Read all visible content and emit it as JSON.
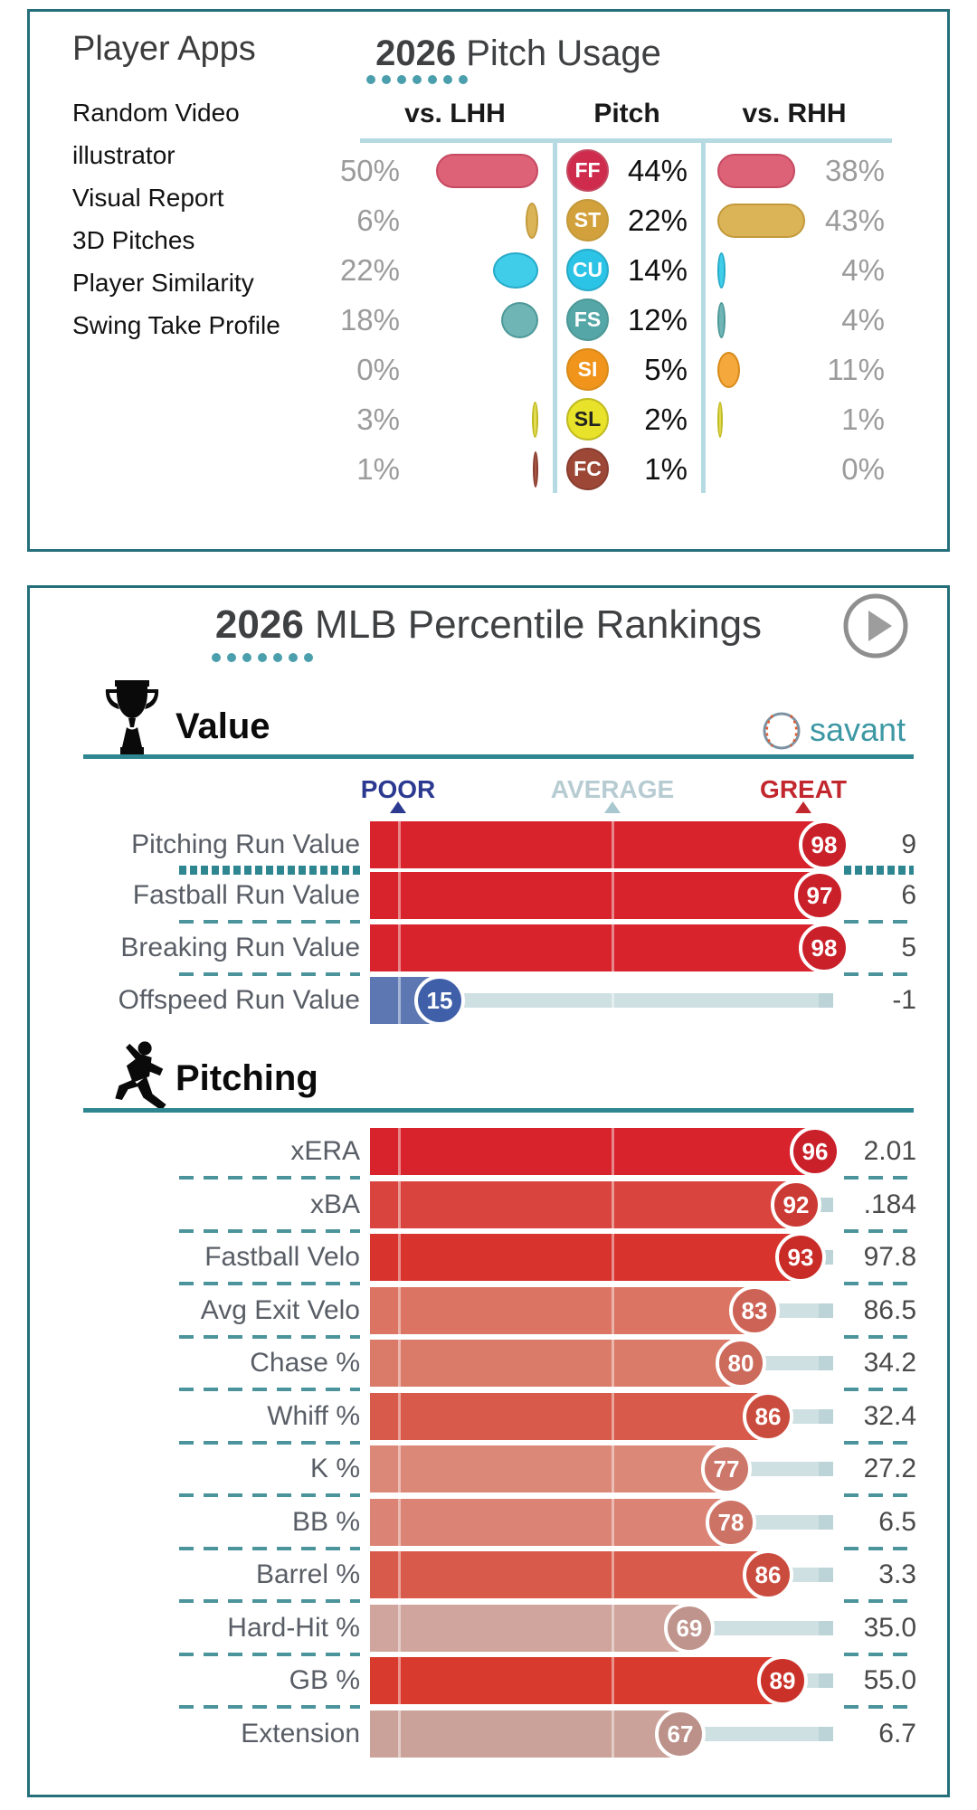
{
  "theme": {
    "card_border": "#256f7b",
    "accent_teal": "#2e8691",
    "dot_color": "#4b9fad",
    "table_line": "#b5dae2",
    "track_color": "#cfe0e2"
  },
  "pitch_usage_card": {
    "apps_title": "Player Apps",
    "app_links": [
      "Random Video",
      "illustrator",
      "Visual Report",
      "3D Pitches",
      "Player Similarity",
      "Swing Take Profile"
    ],
    "title_year": "2026",
    "title_rest": " Pitch Usage",
    "col_lhh": "vs. LHH",
    "col_pitch": "Pitch",
    "col_rhh": "vs. RHH",
    "rows": [
      {
        "code": "FF",
        "lhh_label": "50%",
        "lhh_pct": 50,
        "mid_label": "44%",
        "mid_pct": 44,
        "rhh_label": "38%",
        "rhh_pct": 38,
        "badge_color": "#ce2b4d",
        "badge_text_color": "#ffffff",
        "pill_color": "#dd6177",
        "pill_border": "#c54a62"
      },
      {
        "code": "ST",
        "lhh_label": "6%",
        "lhh_pct": 6,
        "mid_label": "22%",
        "mid_pct": 22,
        "rhh_label": "43%",
        "rhh_pct": 43,
        "badge_color": "#d2a13b",
        "badge_text_color": "#ffffff",
        "pill_color": "#dcb458",
        "pill_border": "#c39a3b"
      },
      {
        "code": "CU",
        "lhh_label": "22%",
        "lhh_pct": 22,
        "mid_label": "14%",
        "mid_pct": 14,
        "rhh_label": "4%",
        "rhh_pct": 4,
        "badge_color": "#2cc4e6",
        "badge_text_color": "#ffffff",
        "pill_color": "#3fcdea",
        "pill_border": "#27aac9"
      },
      {
        "code": "FS",
        "lhh_label": "18%",
        "lhh_pct": 18,
        "mid_label": "12%",
        "mid_pct": 12,
        "rhh_label": "4%",
        "rhh_pct": 4,
        "badge_color": "#55a6a6",
        "badge_text_color": "#ffffff",
        "pill_color": "#6fb5b5",
        "pill_border": "#4d9898"
      },
      {
        "code": "SI",
        "lhh_label": "0%",
        "lhh_pct": 0,
        "mid_label": "5%",
        "mid_pct": 5,
        "rhh_label": "11%",
        "rhh_pct": 11,
        "badge_color": "#f0941c",
        "badge_text_color": "#ffffff",
        "pill_color": "#f5a93c",
        "pill_border": "#d88a1a"
      },
      {
        "code": "SL",
        "lhh_label": "3%",
        "lhh_pct": 3,
        "mid_label": "2%",
        "mid_pct": 2,
        "rhh_label": "1%",
        "rhh_pct": 1,
        "badge_color": "#e8e22a",
        "badge_text_color": "#222222",
        "pill_color": "#e3dd55",
        "pill_border": "#c0ba22"
      },
      {
        "code": "FC",
        "lhh_label": "1%",
        "lhh_pct": 1,
        "mid_label": "1%",
        "mid_pct": 1,
        "rhh_label": "0%",
        "rhh_pct": 0,
        "badge_color": "#9d4837",
        "badge_text_color": "#ffffff",
        "pill_color": "#a65847",
        "pill_border": "#8a3d2f"
      }
    ]
  },
  "rankings_card": {
    "title_year": "2026",
    "title_rest": " MLB Percentile Rankings",
    "brand": "savant",
    "brand_color": "#3d98a4",
    "scale": {
      "poor_label": "POOR",
      "poor_color": "#2b3990",
      "avg_label": "AVERAGE",
      "avg_color": "#b7ccd2",
      "great_label": "GREAT",
      "great_color": "#c1272d"
    },
    "sections": [
      {
        "name": "Value",
        "icon": "trophy-icon",
        "rows": [
          {
            "label": "Pitching Run Value",
            "percentile": 98,
            "value": "9",
            "bar_color": "#d8232c",
            "badge_color": "#c9202a",
            "sep_after": "thick"
          },
          {
            "label": "Fastball Run Value",
            "percentile": 97,
            "value": "6",
            "bar_color": "#d8232c",
            "badge_color": "#c9202a",
            "sep_after": "dash"
          },
          {
            "label": "Breaking Run Value",
            "percentile": 98,
            "value": "5",
            "bar_color": "#d8232c",
            "badge_color": "#c9202a",
            "sep_after": "dash"
          },
          {
            "label": "Offspeed Run Value",
            "percentile": 15,
            "value": "-1",
            "bar_color": "#5d77b2",
            "badge_color": "#3f5fa8",
            "sep_after": null
          }
        ]
      },
      {
        "name": "Pitching",
        "icon": "pitcher-icon",
        "rows": [
          {
            "label": "xERA",
            "percentile": 96,
            "value": "2.01",
            "bar_color": "#d8232c",
            "badge_color": "#c9202a",
            "sep_after": "dash"
          },
          {
            "label": "xBA",
            "percentile": 92,
            "value": ".184",
            "bar_color": "#d9453e",
            "badge_color": "#cb3a34",
            "sep_after": "dash"
          },
          {
            "label": "Fastball Velo",
            "percentile": 93,
            "value": "97.8",
            "bar_color": "#d8332c",
            "badge_color": "#c92b26",
            "sep_after": "dash"
          },
          {
            "label": "Avg Exit Velo",
            "percentile": 83,
            "value": "86.5",
            "bar_color": "#db7463",
            "badge_color": "#cd6356",
            "sep_after": "dash"
          },
          {
            "label": "Chase %",
            "percentile": 80,
            "value": "34.2",
            "bar_color": "#da7b69",
            "badge_color": "#cc6a5b",
            "sep_after": "dash"
          },
          {
            "label": "Whiff %",
            "percentile": 86,
            "value": "32.4",
            "bar_color": "#d85a4a",
            "badge_color": "#ca4c3e",
            "sep_after": "dash"
          },
          {
            "label": "K %",
            "percentile": 77,
            "value": "27.2",
            "bar_color": "#db8878",
            "badge_color": "#cd776a",
            "sep_after": "dash"
          },
          {
            "label": "BB %",
            "percentile": 78,
            "value": "6.5",
            "bar_color": "#db8475",
            "badge_color": "#cd7366",
            "sep_after": "dash"
          },
          {
            "label": "Barrel %",
            "percentile": 86,
            "value": "3.3",
            "bar_color": "#d85a4a",
            "badge_color": "#ca4c3e",
            "sep_after": "dash"
          },
          {
            "label": "Hard-Hit %",
            "percentile": 69,
            "value": "35.0",
            "bar_color": "#cfa59d",
            "badge_color": "#bf948c",
            "sep_after": "dash"
          },
          {
            "label": "GB %",
            "percentile": 89,
            "value": "55.0",
            "bar_color": "#d93a2e",
            "badge_color": "#ca3128",
            "sep_after": "dash"
          },
          {
            "label": "Extension",
            "percentile": 67,
            "value": "6.7",
            "bar_color": "#cba29a",
            "badge_color": "#bb9189",
            "sep_after": null
          }
        ]
      }
    ]
  },
  "chart_data": [
    {
      "type": "table",
      "title": "2026 Pitch Usage",
      "columns": [
        "Pitch",
        "vs. LHH %",
        "Overall %",
        "vs. RHH %"
      ],
      "rows": [
        [
          "FF",
          50,
          44,
          38
        ],
        [
          "ST",
          6,
          22,
          43
        ],
        [
          "CU",
          22,
          14,
          4
        ],
        [
          "FS",
          18,
          12,
          4
        ],
        [
          "SI",
          0,
          5,
          11
        ],
        [
          "SL",
          3,
          2,
          1
        ],
        [
          "FC",
          1,
          1,
          0
        ]
      ]
    },
    {
      "type": "bar",
      "title": "2026 MLB Percentile Rankings",
      "xlabel": "Percentile",
      "xlim": [
        0,
        100
      ],
      "scale_markers": {
        "POOR": 6,
        "AVERAGE": 52,
        "GREAT": 94
      },
      "series": [
        {
          "name": "Value",
          "categories": [
            "Pitching Run Value",
            "Fastball Run Value",
            "Breaking Run Value",
            "Offspeed Run Value"
          ],
          "percentiles": [
            98,
            97,
            98,
            15
          ],
          "stat_values": [
            "9",
            "6",
            "5",
            "-1"
          ]
        },
        {
          "name": "Pitching",
          "categories": [
            "xERA",
            "xBA",
            "Fastball Velo",
            "Avg Exit Velo",
            "Chase %",
            "Whiff %",
            "K %",
            "BB %",
            "Barrel %",
            "Hard-Hit %",
            "GB %",
            "Extension"
          ],
          "percentiles": [
            96,
            92,
            93,
            83,
            80,
            86,
            77,
            78,
            86,
            69,
            89,
            67
          ],
          "stat_values": [
            "2.01",
            ".184",
            "97.8",
            "86.5",
            "34.2",
            "32.4",
            "27.2",
            "6.5",
            "3.3",
            "35.0",
            "55.0",
            "6.7"
          ]
        }
      ]
    }
  ]
}
